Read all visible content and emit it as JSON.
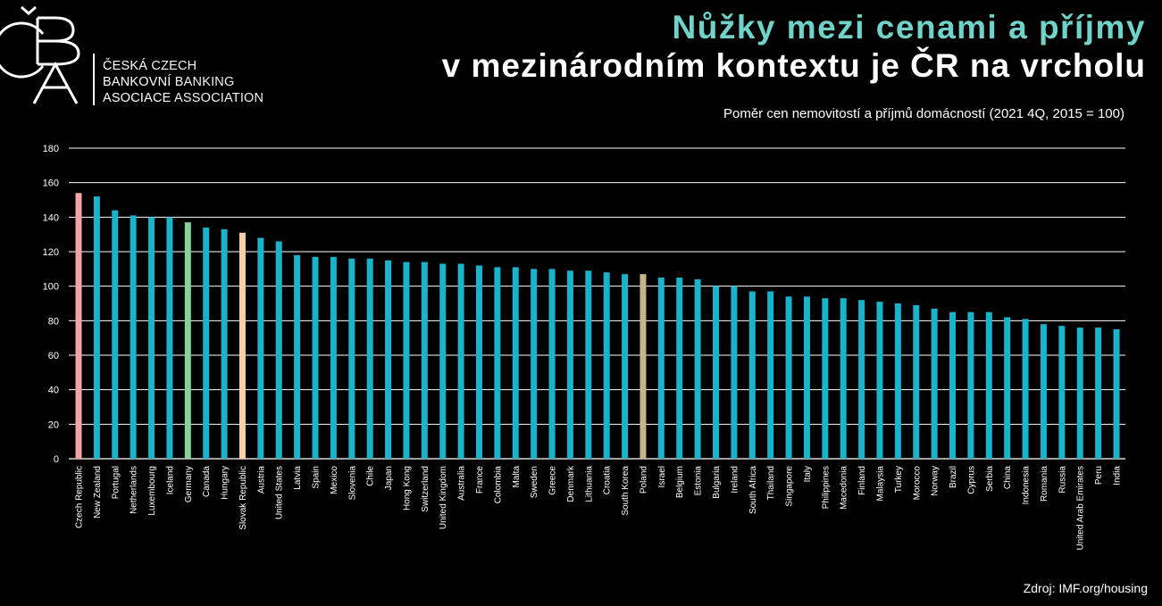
{
  "logo": {
    "mark": "ČBA",
    "lines": [
      {
        "bold": "ČESKÁ",
        "light": "CZECH"
      },
      {
        "bold": "BANKOVNÍ",
        "light": "BANKING"
      },
      {
        "bold": "ASOCIACE",
        "light": "ASSOCIATION"
      }
    ]
  },
  "header": {
    "title_line1": "Nůžky mezi cenami a příjmy",
    "title_line2": "v mezinárodním kontextu je ČR na vrcholu",
    "subtitle": "Poměr cen nemovitostí a příjmů domácností (2021 4Q, 2015 = 100)"
  },
  "footer": {
    "source": "Zdroj: IMF.org/housing"
  },
  "colors": {
    "default_bar": "#19b3cc",
    "czech": "#f4a3a8",
    "germany": "#86d29a",
    "slovakia": "#fcd0a6",
    "poland": "#c7b48a",
    "title_accent": "#6fd3c9",
    "gridline": "#ffffff"
  },
  "chart_data": {
    "type": "bar",
    "ylim": [
      0,
      180
    ],
    "yticks": [
      0,
      20,
      40,
      60,
      80,
      100,
      120,
      140,
      160,
      180
    ],
    "grid": true,
    "categories": [
      "Czech Republic",
      "New Zealand",
      "Portugal",
      "Netherlands",
      "Luxembourg",
      "Iceland",
      "Germany",
      "Canada",
      "Hungary",
      "Slovak Republic",
      "Austria",
      "United States",
      "Latvia",
      "Spain",
      "Mexico",
      "Slovenia",
      "Chile",
      "Japan",
      "Hong Kong",
      "Switzerland",
      "United Kingdom",
      "Australia",
      "France",
      "Colombia",
      "Malta",
      "Sweden",
      "Greece",
      "Denmark",
      "Lithuania",
      "Croatia",
      "South Korea",
      "Poland",
      "Israel",
      "Belgium",
      "Estonia",
      "Bulgaria",
      "Ireland",
      "South Africa",
      "Thailand",
      "Singapore",
      "Italy",
      "Philippines",
      "Macedonia",
      "Finland",
      "Malaysia",
      "Turkey",
      "Morocco",
      "Norway",
      "Brazil",
      "Cyprus",
      "Serbia",
      "China",
      "Indonesia",
      "Romania",
      "Russia",
      "United Arab Emirates",
      "Peru",
      "India"
    ],
    "values": [
      154,
      152,
      144,
      141,
      140,
      140,
      137,
      134,
      133,
      131,
      128,
      126,
      118,
      117,
      117,
      116,
      116,
      115,
      114,
      114,
      113,
      113,
      112,
      111,
      111,
      110,
      110,
      109,
      109,
      108,
      107,
      107,
      105,
      105,
      104,
      100,
      100,
      97,
      97,
      94,
      94,
      93,
      93,
      92,
      91,
      90,
      89,
      87,
      85,
      85,
      85,
      82,
      81,
      78,
      77,
      76,
      76,
      75
    ],
    "highlights": {
      "Czech Republic": "czech",
      "Germany": "germany",
      "Slovak Republic": "slovakia",
      "Poland": "poland"
    }
  }
}
